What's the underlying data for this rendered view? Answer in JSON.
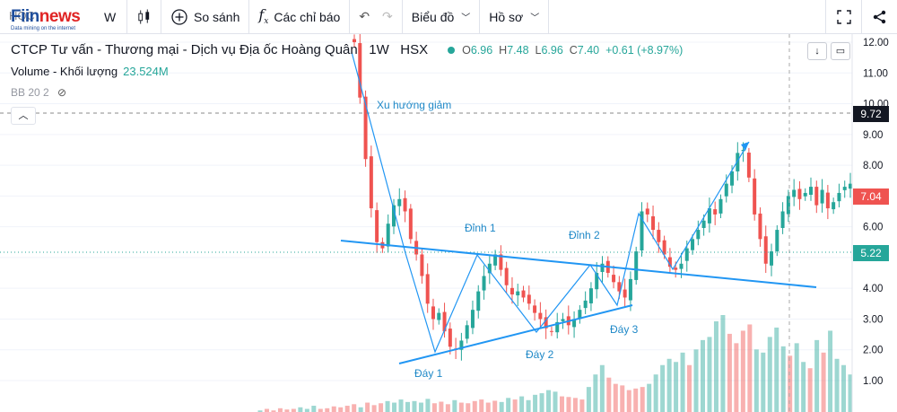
{
  "toolbar": {
    "logo_main": "Fiin",
    "logo_news": "news",
    "logo_tagline": "Data mining on the internet",
    "symbol": "HQC",
    "interval": "W",
    "compare_label": "So sánh",
    "indicators_label": "Các chỉ báo",
    "chart_type_label": "Biểu đồ",
    "profile_label": "Hồ sơ",
    "icons": [
      "candles-icon",
      "plus-circle-icon",
      "fx-icon",
      "undo-icon",
      "redo-icon",
      "chevron-down-icon",
      "fullscreen-icon",
      "share-icon"
    ]
  },
  "legend": {
    "title": "CTCP Tư vấn - Thương mại - Dịch vụ Địa ốc Hoàng Quân",
    "interval": "1W",
    "exchange": "HSX",
    "open_label": "O",
    "open": "6.96",
    "high_label": "H",
    "high": "7.48",
    "low_label": "L",
    "low": "6.96",
    "close_label": "C",
    "close": "7.40",
    "change": "+0.61 (+8.97%)",
    "volume_label": "Volume - Khối lượng",
    "volume_value": "23.524M",
    "bb_label": "BB 20 2"
  },
  "price_tags": {
    "crosshair": "9.72",
    "last": "7.04",
    "bb": "5.22"
  },
  "colors": {
    "up": "#26a69a",
    "down": "#ef5350",
    "trendline": "#2196f3",
    "annotation": "#1e88c7"
  },
  "chart_data": {
    "type": "candlestick",
    "y_axis": {
      "ticks": [
        "12.00",
        "11.00",
        "10.00",
        "9.00",
        "8.00",
        "7.00",
        "6.00",
        "5.00",
        "4.00",
        "3.00",
        "2.00",
        "1.00"
      ],
      "min": 0.6,
      "max": 12.2
    },
    "annotations": [
      "Xu hướng giảm",
      "Đỉnh 1",
      "Đỉnh 2",
      "Đáy 1",
      "Đáy 2",
      "Đáy 3"
    ],
    "close": [
      12.0,
      10.2,
      8.2,
      6.6,
      5.5,
      5.3,
      6.1,
      6.7,
      6.9,
      6.5,
      5.6,
      5.1,
      4.4,
      3.5,
      3.0,
      3.2,
      2.6,
      2.1,
      2.0,
      2.3,
      2.8,
      3.3,
      3.9,
      4.4,
      4.8,
      5.1,
      4.6,
      4.1,
      3.8,
      3.9,
      3.7,
      3.5,
      3.2,
      3.0,
      2.7,
      2.6,
      2.9,
      3.0,
      2.8,
      3.0,
      3.3,
      3.6,
      4.0,
      4.5,
      4.8,
      4.5,
      4.2,
      3.9,
      3.7,
      4.3,
      5.2,
      6.5,
      6.4,
      5.9,
      5.5,
      5.1,
      4.7,
      4.6,
      4.8,
      5.3,
      5.6,
      5.9,
      6.2,
      6.6,
      6.4,
      6.9,
      7.4,
      7.8,
      8.4,
      8.5,
      7.6,
      6.4,
      5.6,
      4.8,
      5.2,
      5.9,
      6.5,
      7.0,
      7.2,
      6.9,
      7.1,
      7.3,
      6.7,
      7.2,
      6.6,
      6.8,
      7.1,
      7.3,
      7.4
    ],
    "volume": [
      0.05,
      0.1,
      0.05,
      0.12,
      0.08,
      0.1,
      0.15,
      0.1,
      0.2,
      0.1,
      0.12,
      0.18,
      0.15,
      0.2,
      0.25,
      0.15,
      0.3,
      0.22,
      0.28,
      0.35,
      0.3,
      0.4,
      0.32,
      0.35,
      0.3,
      0.42,
      0.28,
      0.33,
      0.25,
      0.38,
      0.3,
      0.28,
      0.35,
      0.4,
      0.3,
      0.36,
      0.32,
      0.45,
      0.4,
      0.5,
      0.38,
      0.55,
      0.6,
      0.7,
      0.65,
      0.5,
      0.48,
      0.45,
      0.4,
      0.8,
      1.2,
      1.5,
      1.1,
      0.9,
      0.85,
      0.7,
      0.75,
      0.8,
      0.9,
      1.2,
      1.5,
      1.7,
      1.6,
      1.9,
      1.5,
      2.0,
      2.3,
      2.4,
      2.9,
      3.1,
      2.5,
      2.2,
      2.6,
      2.8,
      2.0,
      1.9,
      2.4,
      2.7,
      2.1,
      1.8,
      2.2,
      1.6,
      1.4,
      2.3,
      1.9,
      2.6,
      1.7,
      1.5,
      1.2
    ]
  }
}
